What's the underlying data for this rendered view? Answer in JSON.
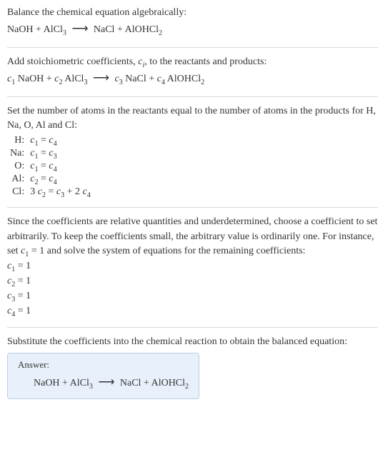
{
  "colors": {
    "text": "#333333",
    "hr": "#d9d9d9",
    "answer_bg": "#e8f1fb",
    "answer_border": "#b9cfe6",
    "page_bg": "#ffffff"
  },
  "fonts": {
    "body_size_pt": 14,
    "answer_label_size_pt": 13,
    "sub_scale": 0.72
  },
  "section1": {
    "intro": "Balance the chemical equation algebraically:",
    "reaction_plain": "NaOH + AlCl3 ⟶ NaCl + AlOHCl2",
    "reactants": [
      {
        "formula": "NaOH",
        "sub": ""
      },
      {
        "formula": "AlCl",
        "sub": "3"
      }
    ],
    "products": [
      {
        "formula": "NaCl",
        "sub": ""
      },
      {
        "formula": "AlOHCl",
        "sub": "2"
      }
    ],
    "arrow": "⟶"
  },
  "section2": {
    "intro_a": "Add stoichiometric coefficients, ",
    "intro_ci": "c",
    "intro_ci_sub": "i",
    "intro_b": ", to the reactants and products:",
    "terms": [
      {
        "coef": "c",
        "coef_sub": "1",
        "formula": "NaOH",
        "sub": ""
      },
      {
        "coef": "c",
        "coef_sub": "2",
        "formula": "AlCl",
        "sub": "3"
      }
    ],
    "prods": [
      {
        "coef": "c",
        "coef_sub": "3",
        "formula": "NaCl",
        "sub": ""
      },
      {
        "coef": "c",
        "coef_sub": "4",
        "formula": "AlOHCl",
        "sub": "2"
      }
    ],
    "arrow": "⟶"
  },
  "section3": {
    "intro": "Set the number of atoms in the reactants equal to the number of atoms in the products for H, Na, O, Al and Cl:",
    "rows": [
      {
        "el": "H:",
        "lhs": "c",
        "lhs_sub": "1",
        "rhs": "c",
        "rhs_sub": "4",
        "full": "c1 = c4"
      },
      {
        "el": "Na:",
        "lhs": "c",
        "lhs_sub": "1",
        "rhs": "c",
        "rhs_sub": "3",
        "full": "c1 = c3"
      },
      {
        "el": "O:",
        "lhs": "c",
        "lhs_sub": "1",
        "rhs": "c",
        "rhs_sub": "4",
        "full": "c1 = c4"
      },
      {
        "el": "Al:",
        "lhs": "c",
        "lhs_sub": "2",
        "rhs": "c",
        "rhs_sub": "4",
        "full": "c2 = c4"
      },
      {
        "el": "Cl:",
        "pre": "3 ",
        "lhs": "c",
        "lhs_sub": "2",
        "rhs_a": "c",
        "rhs_a_sub": "3",
        "plus": " + 2 ",
        "rhs_b": "c",
        "rhs_b_sub": "4",
        "full": "3 c2 = c3 + 2 c4"
      }
    ]
  },
  "section4": {
    "intro_a": "Since the coefficients are relative quantities and underdetermined, choose a coefficient to set arbitrarily. To keep the coefficients small, the arbitrary value is ordinarily one. For instance, set ",
    "set_c": "c",
    "set_sub": "1",
    "set_eq": " = 1",
    "intro_b": " and solve the system of equations for the remaining coefficients:",
    "solutions": [
      {
        "var": "c",
        "sub": "1",
        "val": "1"
      },
      {
        "var": "c",
        "sub": "2",
        "val": "1"
      },
      {
        "var": "c",
        "sub": "3",
        "val": "1"
      },
      {
        "var": "c",
        "sub": "4",
        "val": "1"
      }
    ]
  },
  "section5": {
    "intro": "Substitute the coefficients into the chemical reaction to obtain the balanced equation:",
    "answer_label": "Answer:",
    "reactants": [
      {
        "formula": "NaOH",
        "sub": ""
      },
      {
        "formula": "AlCl",
        "sub": "3"
      }
    ],
    "products": [
      {
        "formula": "NaCl",
        "sub": ""
      },
      {
        "formula": "AlOHCl",
        "sub": "2"
      }
    ],
    "arrow": "⟶"
  }
}
